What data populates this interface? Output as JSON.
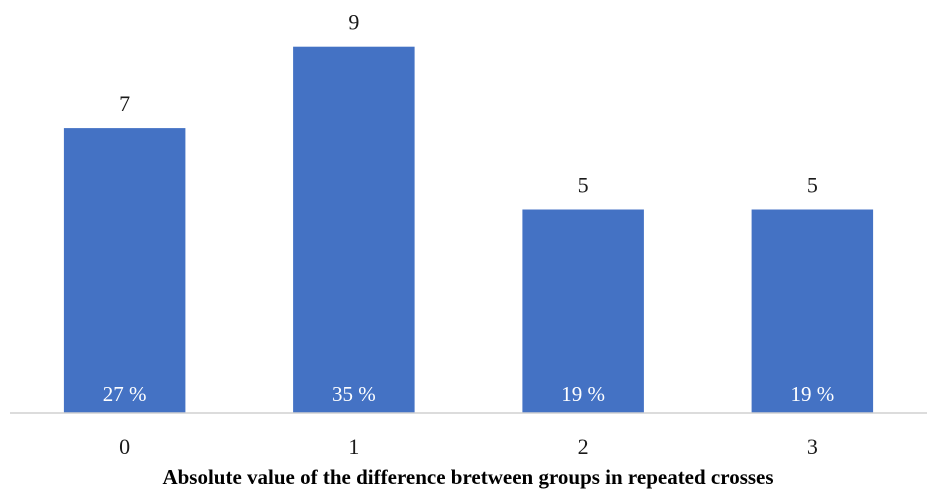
{
  "chart_data": {
    "type": "bar",
    "title": "",
    "xlabel": "Absolute value of the difference bretween groups in repeated crosses",
    "ylabel": "",
    "categories": [
      "0",
      "1",
      "2",
      "3"
    ],
    "values": [
      7,
      9,
      5,
      5
    ],
    "percent_labels": [
      "27 %",
      "35 %",
      "19 %",
      "19 %"
    ],
    "ylim": [
      0,
      10
    ],
    "grid": false,
    "legend": "none",
    "bar_color": "#4472C4"
  }
}
